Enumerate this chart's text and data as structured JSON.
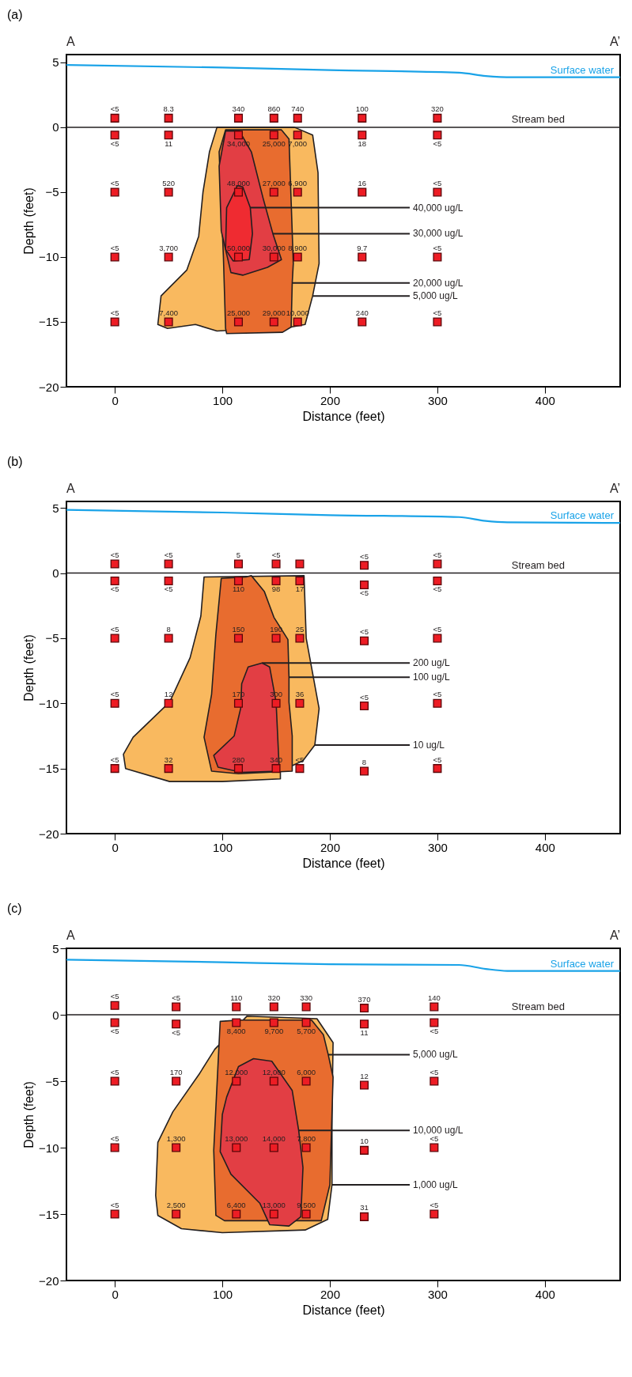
{
  "chart_data": [
    {
      "type": "scatter",
      "title": "(a)",
      "xlabel": "Distance (feet)",
      "ylabel": "Depth (feet)",
      "xlim": [
        -45,
        470
      ],
      "ylim": [
        -20,
        5.6
      ],
      "xticks": [
        0,
        100,
        200,
        300,
        400
      ],
      "yticks": [
        -20,
        -15,
        -10,
        -5,
        0,
        5
      ],
      "grid": false,
      "annotations": [
        "A",
        "A’",
        {
          "text": "40,000 ug/L",
          "x": 126,
          "y": -6.2
        },
        {
          "text": "30,000 ug/L",
          "x": 147,
          "y": -8.2
        },
        {
          "text": "20,000 ug/L",
          "x": 165,
          "y": -12
        },
        {
          "text": "5,000 ug/L",
          "x": 184,
          "y": -13
        },
        {
          "text": "<5",
          "x": 0,
          "y": 0.7
        },
        {
          "text": "8.3",
          "x": 50,
          "y": 0.7
        },
        {
          "text": "340",
          "x": 115,
          "y": 0.7
        },
        {
          "text": "860",
          "x": 148,
          "y": 0.7
        },
        {
          "text": "740",
          "x": 170,
          "y": 0.7
        },
        {
          "text": "100",
          "x": 230,
          "y": 0.7
        },
        {
          "text": "320",
          "x": 300,
          "y": 0.7
        },
        {
          "text": "<5",
          "x": 0,
          "y": -0.6
        },
        {
          "text": "11",
          "x": 50,
          "y": -0.6
        },
        {
          "text": "34,000",
          "x": 115,
          "y": -0.6
        },
        {
          "text": "25,000",
          "x": 148,
          "y": -0.6
        },
        {
          "text": "7,000",
          "x": 170,
          "y": -0.6
        },
        {
          "text": "18",
          "x": 230,
          "y": -0.6
        },
        {
          "text": "<5",
          "x": 300,
          "y": -0.6
        },
        {
          "text": "<5",
          "x": 0,
          "y": -5
        },
        {
          "text": "520",
          "x": 50,
          "y": -5
        },
        {
          "text": "48,000",
          "x": 115,
          "y": -5
        },
        {
          "text": "27,000",
          "x": 148,
          "y": -5
        },
        {
          "text": "6,900",
          "x": 170,
          "y": -5
        },
        {
          "text": "16",
          "x": 230,
          "y": -5
        },
        {
          "text": "<5",
          "x": 300,
          "y": -5
        },
        {
          "text": "<5",
          "x": 0,
          "y": -10
        },
        {
          "text": "3,700",
          "x": 50,
          "y": -10
        },
        {
          "text": "50,000",
          "x": 115,
          "y": -10
        },
        {
          "text": "30,000",
          "x": 148,
          "y": -10
        },
        {
          "text": "8,900",
          "x": 170,
          "y": -10
        },
        {
          "text": "9.7",
          "x": 230,
          "y": -10
        },
        {
          "text": "<5",
          "x": 300,
          "y": -10
        },
        {
          "text": "<5",
          "x": 0,
          "y": -15
        },
        {
          "text": "7,400",
          "x": 50,
          "y": -15
        },
        {
          "text": "25,000",
          "x": 115,
          "y": -15
        },
        {
          "text": "29,000",
          "x": 148,
          "y": -15
        },
        {
          "text": "10,000",
          "x": 170,
          "y": -15
        },
        {
          "text": "240",
          "x": 230,
          "y": -15
        },
        {
          "text": "<5",
          "x": 300,
          "y": -15
        }
      ],
      "ref_lines": [
        {
          "axis": "y",
          "value": 0,
          "label": "Stream bed",
          "color": "#231f20"
        }
      ],
      "series": [
        {
          "type": "area",
          "color": "#f9b95f",
          "x": [
            95,
            88,
            82,
            78,
            67,
            43,
            40,
            49,
            75,
            95,
            164,
            177,
            184,
            190,
            189,
            184,
            167
          ],
          "values": [
            0,
            -1.9,
            -5,
            -8.4,
            -11,
            -13,
            -15.2,
            -15.5,
            -15.2,
            -15.7,
            -15.4,
            -15.2,
            -13,
            -10.5,
            -3.5,
            -0.6,
            0
          ]
        },
        {
          "type": "area",
          "color": "#e86c2f",
          "x": [
            103,
            97,
            101,
            103,
            104,
            156,
            164,
            165,
            166,
            162,
            155
          ],
          "values": [
            -0.2,
            -1.9,
            -10,
            -15.5,
            -15.9,
            -15.8,
            -15.4,
            -12,
            -10.5,
            -0.9,
            -0.2
          ]
        },
        {
          "type": "area",
          "color": "#e23e44",
          "x": [
            103,
            97,
            99,
            108,
            119,
            142,
            155,
            147,
            138,
            127,
            116
          ],
          "values": [
            -0.3,
            -3,
            -8,
            -11.2,
            -11.4,
            -10.8,
            -10.2,
            -8.2,
            -5.5,
            -1.9,
            -0.3
          ]
        },
        {
          "type": "area",
          "color": "#ef2b31",
          "x": [
            114,
            104,
            103,
            110,
            125,
            128,
            126,
            119
          ],
          "values": [
            -4.5,
            -6.2,
            -9.4,
            -10.3,
            -10.2,
            -8.2,
            -6.2,
            -4.6
          ]
        },
        {
          "type": "line",
          "name": "Surface water",
          "color": "#1aa3e8",
          "x": [
            -45,
            100,
            200,
            320,
            345,
            370,
            470
          ],
          "values": [
            4.8,
            4.6,
            4.4,
            4.2,
            3.95,
            3.85,
            3.85
          ]
        },
        {
          "color": "#ed1c24",
          "marker": "square",
          "x": [
            0,
            50,
            115,
            148,
            170,
            230,
            300,
            0,
            50,
            115,
            148,
            170,
            230,
            300,
            0,
            50,
            115,
            148,
            170,
            230,
            300,
            0,
            50,
            115,
            148,
            170,
            230,
            300,
            0,
            50,
            115,
            148,
            170,
            230,
            300
          ],
          "values": [
            0.7,
            0.7,
            0.7,
            0.7,
            0.7,
            0.7,
            0.7,
            -0.6,
            -0.6,
            -0.6,
            -0.6,
            -0.6,
            -0.6,
            -0.6,
            -5,
            -5,
            -5,
            -5,
            -5,
            -5,
            -5,
            -10,
            -10,
            -10,
            -10,
            -10,
            -10,
            -10,
            -15,
            -15,
            -15,
            -15,
            -15,
            -15,
            -15
          ]
        }
      ]
    },
    {
      "type": "scatter",
      "title": "(b)",
      "xlabel": "Distance (feet)",
      "ylabel": "Depth (feet)",
      "xlim": [
        -45,
        470
      ],
      "ylim": [
        -20,
        5.5
      ],
      "xticks": [
        0,
        100,
        200,
        300,
        400
      ],
      "yticks": [
        -20,
        -15,
        -10,
        -5,
        0,
        5
      ],
      "grid": false,
      "annotations": [
        "A",
        "A’",
        {
          "text": "200 ug/L",
          "x": 137,
          "y": -6.9
        },
        {
          "text": "100 ug/L",
          "x": 162,
          "y": -8.0
        },
        {
          "text": "10 ug/L",
          "x": 186,
          "y": -13.2
        },
        {
          "text": "<5",
          "x": 0,
          "y": 0.7
        },
        {
          "text": "<5",
          "x": 50,
          "y": 0.7
        },
        {
          "text": "5",
          "x": 115,
          "y": 0.7
        },
        {
          "text": "<5",
          "x": 150,
          "y": 0.7
        },
        {
          "text": "<5",
          "x": 232,
          "y": 0.6
        },
        {
          "text": "<5",
          "x": 300,
          "y": 0.7
        },
        {
          "text": "<5",
          "x": 0,
          "y": -0.6
        },
        {
          "text": "<5",
          "x": 50,
          "y": -0.6
        },
        {
          "text": "110",
          "x": 115,
          "y": -0.6
        },
        {
          "text": "98",
          "x": 150,
          "y": -0.6
        },
        {
          "text": "17",
          "x": 172,
          "y": -0.6
        },
        {
          "text": "<5",
          "x": 232,
          "y": -0.9
        },
        {
          "text": "<5",
          "x": 300,
          "y": -0.6
        },
        {
          "text": "<5",
          "x": 0,
          "y": -5
        },
        {
          "text": "8",
          "x": 50,
          "y": -5
        },
        {
          "text": "150",
          "x": 115,
          "y": -5
        },
        {
          "text": "190",
          "x": 150,
          "y": -5
        },
        {
          "text": "25",
          "x": 172,
          "y": -5
        },
        {
          "text": "<5",
          "x": 232,
          "y": -5.2
        },
        {
          "text": "<5",
          "x": 300,
          "y": -5
        },
        {
          "text": "<5",
          "x": 0,
          "y": -10
        },
        {
          "text": "12",
          "x": 50,
          "y": -10
        },
        {
          "text": "170",
          "x": 115,
          "y": -10
        },
        {
          "text": "300",
          "x": 150,
          "y": -10
        },
        {
          "text": "36",
          "x": 172,
          "y": -10
        },
        {
          "text": "<5",
          "x": 232,
          "y": -10.2
        },
        {
          "text": "<5",
          "x": 300,
          "y": -10
        },
        {
          "text": "<5",
          "x": 0,
          "y": -15
        },
        {
          "text": "32",
          "x": 50,
          "y": -15
        },
        {
          "text": "280",
          "x": 115,
          "y": -15
        },
        {
          "text": "340",
          "x": 150,
          "y": -15
        },
        {
          "text": "<5",
          "x": 172,
          "y": -15
        },
        {
          "text": "8",
          "x": 232,
          "y": -15.2
        },
        {
          "text": "<5",
          "x": 300,
          "y": -15
        }
      ],
      "ref_lines": [
        {
          "axis": "y",
          "value": 0,
          "label": "Stream bed",
          "color": "#231f20"
        }
      ],
      "series": [
        {
          "type": "area",
          "color": "#f9b95f",
          "x": [
            83,
            80,
            70,
            51,
            17,
            8,
            10,
            51,
            100,
            154,
            154,
            175,
            186,
            190,
            178,
            176
          ],
          "values": [
            -0.3,
            -3.3,
            -6.5,
            -9.9,
            -12.6,
            -13.9,
            -15,
            -16,
            -16,
            -15.8,
            -15.2,
            -14.4,
            -13.2,
            -10.4,
            -5,
            -0.2
          ]
        },
        {
          "type": "area",
          "color": "#e86c2f",
          "x": [
            94,
            99,
            122,
            127,
            139,
            148,
            161,
            162,
            162,
            165,
            165,
            115,
            90,
            83,
            90
          ],
          "values": [
            -4.7,
            -0.4,
            -0.3,
            -0.2,
            -1.4,
            -3.4,
            -5.1,
            -8.0,
            -9.9,
            -12.5,
            -15.2,
            -15.4,
            -15.2,
            -12.6,
            -9.3
          ]
        },
        {
          "type": "area",
          "color": "#e23e44",
          "x": [
            118,
            124,
            137,
            144,
            150,
            153,
            118,
            96,
            92,
            111,
            117
          ],
          "values": [
            -8.5,
            -7.2,
            -6.9,
            -7.2,
            -9.9,
            -15.2,
            -15.3,
            -14.9,
            -14,
            -12.5,
            -10.4
          ]
        },
        {
          "type": "line",
          "name": "Surface water",
          "color": "#1aa3e8",
          "x": [
            -45,
            100,
            200,
            320,
            345,
            365,
            470
          ],
          "values": [
            4.85,
            4.65,
            4.45,
            4.3,
            4.0,
            3.9,
            3.85
          ]
        },
        {
          "color": "#ed1c24",
          "marker": "square",
          "x": [
            0,
            50,
            115,
            150,
            172,
            232,
            300,
            0,
            50,
            115,
            150,
            172,
            232,
            300,
            0,
            50,
            115,
            150,
            172,
            232,
            300,
            0,
            50,
            115,
            150,
            172,
            232,
            300,
            0,
            50,
            115,
            150,
            172,
            232,
            300
          ],
          "values": [
            0.7,
            0.7,
            0.7,
            0.7,
            0.7,
            0.6,
            0.7,
            -0.6,
            -0.6,
            -0.6,
            -0.6,
            -0.6,
            -0.9,
            -0.6,
            -5,
            -5,
            -5,
            -5,
            -5,
            -5.2,
            -5,
            -10,
            -10,
            -10,
            -10,
            -10,
            -10.2,
            -10,
            -15,
            -15,
            -15,
            -15,
            -15,
            -15.2,
            -15
          ]
        }
      ]
    },
    {
      "type": "scatter",
      "title": "(c)",
      "xlabel": "Distance (feet)",
      "ylabel": "Depth (feet)",
      "xlim": [
        -45,
        470
      ],
      "ylim": [
        -20,
        5
      ],
      "xticks": [
        0,
        100,
        200,
        300,
        400
      ],
      "yticks": [
        -20,
        -15,
        -10,
        -5,
        0,
        5
      ],
      "grid": false,
      "annotations": [
        "A",
        "A’",
        {
          "text": "5,000 ug/L",
          "x": 198.5,
          "y": -3.0
        },
        {
          "text": "10,000 ug/L",
          "x": 171,
          "y": -8.7
        },
        {
          "text": "1,000 ug/L",
          "x": 202,
          "y": -12.8
        },
        {
          "text": "<5",
          "x": 0,
          "y": 0.7
        },
        {
          "text": "<5",
          "x": 57,
          "y": 0.6
        },
        {
          "text": "110",
          "x": 113,
          "y": 0.6
        },
        {
          "text": "320",
          "x": 148,
          "y": 0.6
        },
        {
          "text": "330",
          "x": 178,
          "y": 0.6
        },
        {
          "text": "370",
          "x": 232,
          "y": 0.5
        },
        {
          "text": "140",
          "x": 297,
          "y": 0.6
        },
        {
          "text": "<5",
          "x": 0,
          "y": -0.6
        },
        {
          "text": "<5",
          "x": 57,
          "y": -0.7
        },
        {
          "text": "8,400",
          "x": 113,
          "y": -0.6
        },
        {
          "text": "9,700",
          "x": 148,
          "y": -0.6
        },
        {
          "text": "5,700",
          "x": 178,
          "y": -0.6
        },
        {
          "text": "11",
          "x": 232,
          "y": -0.7
        },
        {
          "text": "<5",
          "x": 297,
          "y": -0.6
        },
        {
          "text": "<5",
          "x": 0,
          "y": -5
        },
        {
          "text": "170",
          "x": 57,
          "y": -5
        },
        {
          "text": "12,000",
          "x": 113,
          "y": -5
        },
        {
          "text": "12,000",
          "x": 148,
          "y": -5
        },
        {
          "text": "6,000",
          "x": 178,
          "y": -5
        },
        {
          "text": "12",
          "x": 232,
          "y": -5.3
        },
        {
          "text": "<5",
          "x": 297,
          "y": -5
        },
        {
          "text": "<5",
          "x": 0,
          "y": -10
        },
        {
          "text": "1,300",
          "x": 57,
          "y": -10
        },
        {
          "text": "13,000",
          "x": 113,
          "y": -10
        },
        {
          "text": "14,000",
          "x": 148,
          "y": -10
        },
        {
          "text": "7,800",
          "x": 178,
          "y": -10
        },
        {
          "text": "10",
          "x": 232,
          "y": -10.2
        },
        {
          "text": "<5",
          "x": 297,
          "y": -10
        },
        {
          "text": "<5",
          "x": 0,
          "y": -15
        },
        {
          "text": "2,500",
          "x": 57,
          "y": -15
        },
        {
          "text": "6,400",
          "x": 113,
          "y": -15
        },
        {
          "text": "13,000",
          "x": 148,
          "y": -15
        },
        {
          "text": "9,500",
          "x": 178,
          "y": -15
        },
        {
          "text": "31",
          "x": 232,
          "y": -15.2
        },
        {
          "text": "<5",
          "x": 297,
          "y": -15
        }
      ],
      "ref_lines": [
        {
          "axis": "y",
          "value": 0,
          "label": "Stream bed",
          "color": "#231f20"
        }
      ],
      "series": [
        {
          "type": "area",
          "color": "#f9b95f",
          "x": [
            93,
            79,
            54,
            40,
            38,
            40,
            62,
            100,
            177,
            198,
            202,
            202,
            203,
            188,
            123
          ],
          "values": [
            -2.6,
            -4.4,
            -7.3,
            -9.6,
            -13.6,
            -15.1,
            -16.1,
            -16.4,
            -16.2,
            -15.4,
            -12.8,
            -7.5,
            -2.1,
            -0.3,
            -0.1
          ]
        },
        {
          "type": "area",
          "color": "#e86c2f",
          "x": [
            98,
            92,
            94,
            102,
            192,
            200,
            203,
            198.5,
            194,
            183,
            115
          ],
          "values": [
            -0.5,
            -10.2,
            -15.1,
            -15.5,
            -15.5,
            -12.8,
            -4.7,
            -3.0,
            -1.5,
            -0.4,
            -0.4
          ]
        },
        {
          "type": "area",
          "color": "#e23e44",
          "x": [
            104,
            115,
            129,
            146,
            165,
            171,
            175,
            173,
            162,
            144,
            135,
            108,
            98,
            100
          ],
          "values": [
            -6.2,
            -3.9,
            -3.3,
            -3.5,
            -5.7,
            -8.7,
            -11.5,
            -15.2,
            -15.9,
            -15.8,
            -14.2,
            -12,
            -10.3,
            -7.5
          ]
        },
        {
          "type": "line",
          "name": "Surface water",
          "color": "#1aa3e8",
          "x": [
            -45,
            100,
            200,
            320,
            345,
            365,
            470
          ],
          "values": [
            4.15,
            3.95,
            3.8,
            3.75,
            3.45,
            3.3,
            3.3
          ]
        },
        {
          "color": "#ed1c24",
          "marker": "square",
          "x": [
            0,
            57,
            113,
            148,
            178,
            232,
            297,
            0,
            57,
            113,
            148,
            178,
            232,
            297,
            0,
            57,
            113,
            148,
            178,
            232,
            297,
            0,
            57,
            113,
            148,
            178,
            232,
            297,
            0,
            57,
            113,
            148,
            178,
            232,
            297
          ],
          "values": [
            0.7,
            0.6,
            0.6,
            0.6,
            0.6,
            0.5,
            0.6,
            -0.6,
            -0.7,
            -0.6,
            -0.6,
            -0.6,
            -0.7,
            -0.6,
            -5,
            -5,
            -5,
            -5,
            -5,
            -5.3,
            -5,
            -10,
            -10,
            -10,
            -10,
            -10,
            -10.2,
            -10,
            -15,
            -15,
            -15,
            -15,
            -15,
            -15.2,
            -15
          ]
        }
      ]
    }
  ]
}
